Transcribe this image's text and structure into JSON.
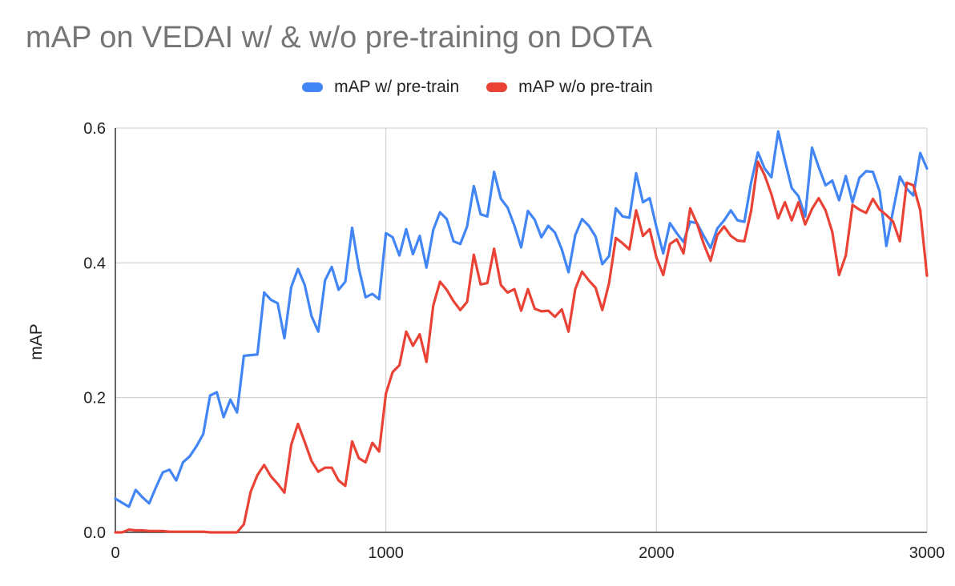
{
  "chart_data": {
    "type": "line",
    "title": "mAP on VEDAI w/ & w/o pre-training on DOTA",
    "xlabel": "",
    "ylabel": "mAP",
    "xlim": [
      0,
      3000
    ],
    "ylim": [
      0,
      0.6
    ],
    "xticks": [
      "0",
      "1000",
      "2000",
      "3000"
    ],
    "yticks": [
      "0.0",
      "0.2",
      "0.4",
      "0.6"
    ],
    "grid": true,
    "legend_position": "top",
    "x": [
      0,
      25,
      50,
      75,
      100,
      125,
      150,
      175,
      200,
      225,
      250,
      275,
      300,
      325,
      350,
      375,
      400,
      425,
      450,
      475,
      500,
      525,
      550,
      575,
      600,
      625,
      650,
      675,
      700,
      725,
      750,
      775,
      800,
      825,
      850,
      875,
      900,
      925,
      950,
      975,
      1000,
      1025,
      1050,
      1075,
      1100,
      1125,
      1150,
      1175,
      1200,
      1225,
      1250,
      1275,
      1300,
      1325,
      1350,
      1375,
      1400,
      1425,
      1450,
      1475,
      1500,
      1525,
      1550,
      1575,
      1600,
      1625,
      1650,
      1675,
      1700,
      1725,
      1750,
      1775,
      1800,
      1825,
      1850,
      1875,
      1900,
      1925,
      1950,
      1975,
      2000,
      2025,
      2050,
      2075,
      2100,
      2125,
      2150,
      2175,
      2200,
      2225,
      2250,
      2275,
      2300,
      2325,
      2350,
      2375,
      2400,
      2425,
      2450,
      2475,
      2500,
      2525,
      2550,
      2575,
      2600,
      2625,
      2650,
      2675,
      2700,
      2725,
      2750,
      2775,
      2800,
      2825,
      2850,
      2875,
      2900,
      2925,
      2950,
      2975,
      3000
    ],
    "series": [
      {
        "name": "mAP w/ pre-train",
        "color": "#4285f4",
        "values": [
          0.05,
          0.044,
          0.038,
          0.063,
          0.052,
          0.043,
          0.067,
          0.089,
          0.093,
          0.077,
          0.104,
          0.113,
          0.128,
          0.146,
          0.203,
          0.208,
          0.171,
          0.197,
          0.178,
          0.262,
          0.263,
          0.264,
          0.356,
          0.345,
          0.34,
          0.288,
          0.364,
          0.391,
          0.367,
          0.321,
          0.298,
          0.374,
          0.394,
          0.36,
          0.372,
          0.452,
          0.392,
          0.349,
          0.354,
          0.346,
          0.444,
          0.438,
          0.411,
          0.45,
          0.413,
          0.44,
          0.393,
          0.449,
          0.475,
          0.465,
          0.432,
          0.428,
          0.454,
          0.514,
          0.472,
          0.469,
          0.535,
          0.495,
          0.482,
          0.455,
          0.423,
          0.477,
          0.464,
          0.438,
          0.455,
          0.445,
          0.42,
          0.386,
          0.441,
          0.465,
          0.455,
          0.439,
          0.398,
          0.41,
          0.481,
          0.469,
          0.467,
          0.533,
          0.49,
          0.496,
          0.453,
          0.414,
          0.459,
          0.444,
          0.431,
          0.461,
          0.459,
          0.44,
          0.422,
          0.451,
          0.463,
          0.478,
          0.463,
          0.461,
          0.519,
          0.564,
          0.54,
          0.527,
          0.595,
          0.552,
          0.511,
          0.499,
          0.469,
          0.571,
          0.542,
          0.515,
          0.522,
          0.493,
          0.529,
          0.49,
          0.526,
          0.536,
          0.535,
          0.506,
          0.425,
          0.478,
          0.528,
          0.51,
          0.5,
          0.563,
          0.54
        ]
      },
      {
        "name": "mAP w/o pre-train",
        "color": "#ea4335",
        "values": [
          0.0,
          0.0,
          0.004,
          0.003,
          0.003,
          0.002,
          0.002,
          0.002,
          0.001,
          0.001,
          0.001,
          0.001,
          0.001,
          0.001,
          0.0,
          0.0,
          0.0,
          0.0,
          0.0,
          0.012,
          0.06,
          0.085,
          0.1,
          0.083,
          0.072,
          0.059,
          0.13,
          0.161,
          0.134,
          0.106,
          0.09,
          0.096,
          0.096,
          0.077,
          0.069,
          0.135,
          0.11,
          0.104,
          0.133,
          0.12,
          0.206,
          0.238,
          0.248,
          0.298,
          0.277,
          0.294,
          0.253,
          0.337,
          0.372,
          0.36,
          0.343,
          0.33,
          0.342,
          0.412,
          0.368,
          0.37,
          0.421,
          0.367,
          0.356,
          0.361,
          0.329,
          0.361,
          0.332,
          0.328,
          0.329,
          0.32,
          0.331,
          0.298,
          0.361,
          0.387,
          0.374,
          0.363,
          0.33,
          0.37,
          0.437,
          0.429,
          0.42,
          0.478,
          0.44,
          0.45,
          0.408,
          0.382,
          0.428,
          0.435,
          0.414,
          0.481,
          0.458,
          0.428,
          0.403,
          0.441,
          0.454,
          0.44,
          0.433,
          0.432,
          0.477,
          0.55,
          0.53,
          0.502,
          0.466,
          0.49,
          0.463,
          0.49,
          0.457,
          0.48,
          0.496,
          0.478,
          0.446,
          0.382,
          0.411,
          0.486,
          0.479,
          0.474,
          0.495,
          0.479,
          0.471,
          0.461,
          0.432,
          0.519,
          0.515,
          0.478,
          0.381
        ]
      }
    ]
  }
}
